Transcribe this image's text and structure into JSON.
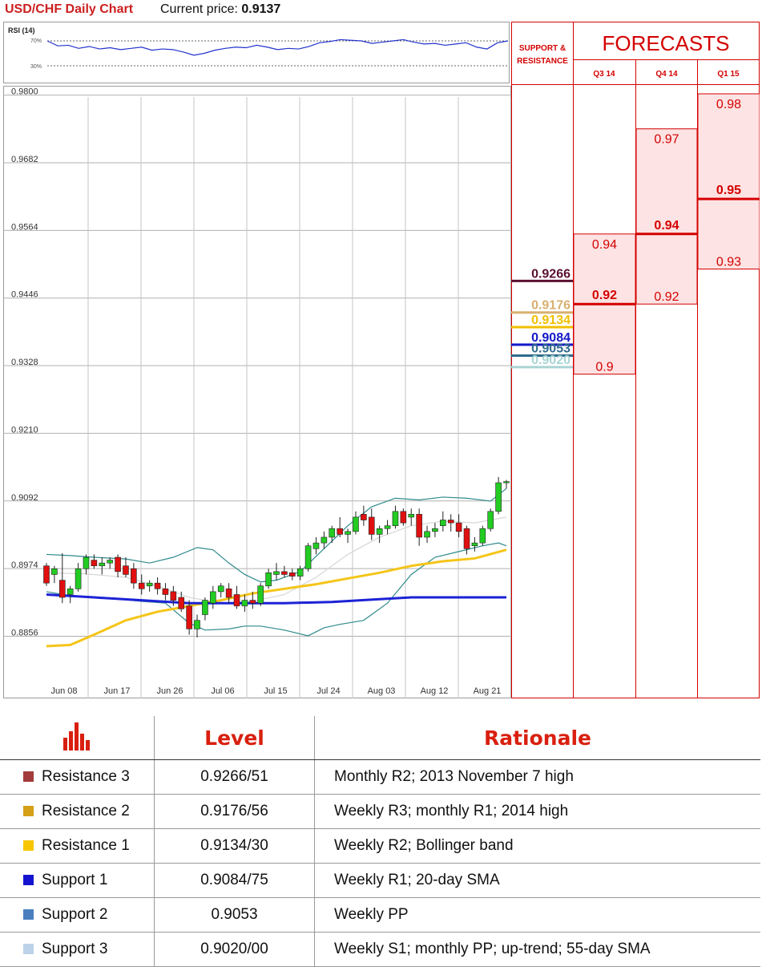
{
  "header": {
    "title": "USD/CHF Daily Chart",
    "price_label": "Current price: ",
    "price_value": "0.9137"
  },
  "rsi": {
    "label": "RSI (14)",
    "levels": [
      "70%",
      "30%"
    ],
    "values": [
      70,
      62,
      63,
      58,
      61,
      57,
      59,
      56,
      58,
      60,
      55,
      57,
      56,
      52,
      47,
      50,
      55,
      58,
      60,
      59,
      63,
      60,
      56,
      58,
      57,
      61,
      67,
      69,
      72,
      71,
      70,
      66,
      68,
      70,
      72,
      68,
      65,
      66,
      63,
      65,
      67,
      60,
      57,
      67,
      70
    ]
  },
  "chart_data": {
    "type": "candlestick",
    "title": "USD/CHF Daily Chart",
    "ylim": [
      0.8812,
      0.9812
    ],
    "yticks": [
      "0.9800",
      "0.9682",
      "0.9564",
      "0.9446",
      "0.9328",
      "0.9210",
      "0.9092",
      "0.8974",
      "0.8856"
    ],
    "xticks": [
      "Jun 08",
      "Jun 17",
      "Jun 26",
      "Jul 06",
      "Jul 15",
      "Jul 24",
      "Aug 03",
      "Aug 12",
      "Aug 21"
    ],
    "grid": true,
    "candles": [
      [
        0.899,
        0.8995,
        0.8955,
        0.896
      ],
      [
        0.8975,
        0.899,
        0.896,
        0.8985
      ],
      [
        0.8965,
        0.9012,
        0.8925,
        0.8935
      ],
      [
        0.894,
        0.8955,
        0.8925,
        0.895
      ],
      [
        0.895,
        0.8995,
        0.8945,
        0.8985
      ],
      [
        0.8985,
        0.901,
        0.8975,
        0.9005
      ],
      [
        0.9,
        0.901,
        0.8985,
        0.899
      ],
      [
        0.899,
        0.9005,
        0.8975,
        0.8995
      ],
      [
        0.8995,
        0.9005,
        0.8985,
        0.9
      ],
      [
        0.9005,
        0.901,
        0.897,
        0.898
      ],
      [
        0.899,
        0.9005,
        0.897,
        0.8975
      ],
      [
        0.8985,
        0.8995,
        0.895,
        0.896
      ],
      [
        0.896,
        0.8975,
        0.894,
        0.895
      ],
      [
        0.8955,
        0.8965,
        0.8945,
        0.896
      ],
      [
        0.896,
        0.897,
        0.894,
        0.895
      ],
      [
        0.895,
        0.896,
        0.893,
        0.894
      ],
      [
        0.8945,
        0.8955,
        0.892,
        0.893
      ],
      [
        0.8935,
        0.8945,
        0.891,
        0.8915
      ],
      [
        0.892,
        0.893,
        0.887,
        0.888
      ],
      [
        0.888,
        0.8905,
        0.8865,
        0.8895
      ],
      [
        0.8905,
        0.8935,
        0.8895,
        0.893
      ],
      [
        0.8925,
        0.8955,
        0.8915,
        0.8945
      ],
      [
        0.8945,
        0.896,
        0.8935,
        0.8955
      ],
      [
        0.895,
        0.896,
        0.8925,
        0.8935
      ],
      [
        0.894,
        0.8955,
        0.8915,
        0.892
      ],
      [
        0.892,
        0.894,
        0.891,
        0.893
      ],
      [
        0.893,
        0.8945,
        0.8915,
        0.8925
      ],
      [
        0.8925,
        0.896,
        0.892,
        0.8955
      ],
      [
        0.8955,
        0.8985,
        0.895,
        0.8978
      ],
      [
        0.8975,
        0.8995,
        0.8965,
        0.898
      ],
      [
        0.898,
        0.899,
        0.897,
        0.8975
      ],
      [
        0.8978,
        0.8985,
        0.8965,
        0.8972
      ],
      [
        0.8972,
        0.899,
        0.8965,
        0.8985
      ],
      [
        0.8985,
        0.903,
        0.898,
        0.9025
      ],
      [
        0.902,
        0.904,
        0.901,
        0.903
      ],
      [
        0.903,
        0.905,
        0.902,
        0.904
      ],
      [
        0.904,
        0.906,
        0.903,
        0.9055
      ],
      [
        0.9055,
        0.9075,
        0.904,
        0.9045
      ],
      [
        0.9045,
        0.9055,
        0.903,
        0.905
      ],
      [
        0.905,
        0.9085,
        0.9045,
        0.9075
      ],
      [
        0.908,
        0.9095,
        0.906,
        0.907
      ],
      [
        0.9075,
        0.909,
        0.9035,
        0.9045
      ],
      [
        0.9045,
        0.906,
        0.903,
        0.9055
      ],
      [
        0.9055,
        0.907,
        0.9045,
        0.906
      ],
      [
        0.906,
        0.9095,
        0.9055,
        0.9085
      ],
      [
        0.9085,
        0.909,
        0.906,
        0.9065
      ],
      [
        0.9075,
        0.909,
        0.906,
        0.908
      ],
      [
        0.908,
        0.909,
        0.9025,
        0.904
      ],
      [
        0.904,
        0.906,
        0.903,
        0.905
      ],
      [
        0.905,
        0.9065,
        0.904,
        0.9055
      ],
      [
        0.906,
        0.9085,
        0.905,
        0.907
      ],
      [
        0.907,
        0.908,
        0.905,
        0.9065
      ],
      [
        0.9065,
        0.908,
        0.904,
        0.905
      ],
      [
        0.9055,
        0.906,
        0.901,
        0.902
      ],
      [
        0.9025,
        0.904,
        0.9015,
        0.903
      ],
      [
        0.903,
        0.906,
        0.9025,
        0.9055
      ],
      [
        0.9055,
        0.909,
        0.905,
        0.9085
      ],
      [
        0.9085,
        0.9145,
        0.908,
        0.9135
      ],
      [
        0.9135,
        0.914,
        0.9125,
        0.9137
      ]
    ],
    "series": [
      {
        "role": "bb_upper",
        "color": "#2f8a8c",
        "points": [
          [
            0,
            0.901
          ],
          [
            3,
            0.9008
          ],
          [
            6,
            0.9005
          ],
          [
            10,
            0.9002
          ],
          [
            13,
            0.8995
          ],
          [
            16,
            0.9005
          ],
          [
            19,
            0.9022
          ],
          [
            21,
            0.9018
          ],
          [
            23,
            0.8995
          ],
          [
            25,
            0.8975
          ],
          [
            27,
            0.8962
          ],
          [
            29,
            0.8965
          ],
          [
            32,
            0.898
          ],
          [
            35,
            0.902
          ],
          [
            38,
            0.906
          ],
          [
            41,
            0.9093
          ],
          [
            44,
            0.9108
          ],
          [
            47,
            0.9105
          ],
          [
            50,
            0.911
          ],
          [
            53,
            0.9108
          ],
          [
            56,
            0.9103
          ],
          [
            58,
            0.9125
          ]
        ]
      },
      {
        "role": "bb_lower",
        "color": "#2f8a8c",
        "points": [
          [
            0,
            0.8945
          ],
          [
            3,
            0.8938
          ],
          [
            6,
            0.8935
          ],
          [
            9,
            0.8932
          ],
          [
            12,
            0.8928
          ],
          [
            15,
            0.8925
          ],
          [
            18,
            0.889
          ],
          [
            20,
            0.8878
          ],
          [
            23,
            0.888
          ],
          [
            25,
            0.8885
          ],
          [
            27,
            0.8885
          ],
          [
            30,
            0.8878
          ],
          [
            33,
            0.8868
          ],
          [
            35,
            0.8882
          ],
          [
            37,
            0.8888
          ],
          [
            40,
            0.8895
          ],
          [
            43,
            0.8925
          ],
          [
            46,
            0.8975
          ],
          [
            49,
            0.9005
          ],
          [
            52,
            0.9015
          ],
          [
            55,
            0.9025
          ],
          [
            57,
            0.903
          ],
          [
            58,
            0.9025
          ]
        ]
      },
      {
        "role": "bb_mid",
        "color": "#d6d6d6",
        "points": [
          [
            0,
            0.8978
          ],
          [
            5,
            0.8976
          ],
          [
            10,
            0.897
          ],
          [
            14,
            0.8955
          ],
          [
            18,
            0.8935
          ],
          [
            22,
            0.8925
          ],
          [
            26,
            0.8928
          ],
          [
            30,
            0.894
          ],
          [
            34,
            0.897
          ],
          [
            38,
            0.901
          ],
          [
            42,
            0.904
          ],
          [
            46,
            0.906
          ],
          [
            50,
            0.9068
          ],
          [
            54,
            0.9065
          ],
          [
            58,
            0.9075
          ]
        ]
      },
      {
        "role": "sma_55",
        "color": "#f5c518",
        "points": [
          [
            0,
            0.885
          ],
          [
            3,
            0.8852
          ],
          [
            6,
            0.887
          ],
          [
            10,
            0.8895
          ],
          [
            14,
            0.891
          ],
          [
            18,
            0.892
          ],
          [
            22,
            0.893
          ],
          [
            26,
            0.8942
          ],
          [
            30,
            0.895
          ],
          [
            34,
            0.8958
          ],
          [
            38,
            0.8968
          ],
          [
            42,
            0.8978
          ],
          [
            46,
            0.899
          ],
          [
            50,
            0.8998
          ],
          [
            54,
            0.9003
          ],
          [
            58,
            0.9018
          ]
        ]
      },
      {
        "role": "sma_200",
        "color": "#1c22d6",
        "points": [
          [
            0,
            0.894
          ],
          [
            6,
            0.8935
          ],
          [
            12,
            0.893
          ],
          [
            18,
            0.8925
          ],
          [
            24,
            0.8925
          ],
          [
            30,
            0.8925
          ],
          [
            36,
            0.8927
          ],
          [
            42,
            0.8932
          ],
          [
            46,
            0.8935
          ],
          [
            52,
            0.8935
          ],
          [
            58,
            0.8935
          ]
        ]
      }
    ]
  },
  "forecast": {
    "heading_left": [
      "SUPPORT &",
      "RESISTANCE"
    ],
    "title": "FORECASTS",
    "columns": [
      "Q3 14",
      "Q4 14",
      "Q1 15"
    ],
    "levels": [
      {
        "label": "0.9266",
        "value": 0.9266,
        "color": "#5a1030"
      },
      {
        "label": "0.9176",
        "value": 0.9176,
        "color": "#d8b070"
      },
      {
        "label": "0.9134",
        "value": 0.9134,
        "color": "#f0c000"
      },
      {
        "label": "0.9084",
        "value": 0.9084,
        "color": "#1418c8"
      },
      {
        "label": "0.9053",
        "value": 0.9053,
        "color": "#2e6c8c"
      },
      {
        "label": "0.9020",
        "value": 0.902,
        "color": "#a9d4d4"
      }
    ],
    "bands": [
      {
        "high": 0.94,
        "mid": 0.92,
        "low": 0.9,
        "labels": [
          "0.94",
          "0.92",
          "0.9"
        ]
      },
      {
        "high": 0.97,
        "mid": 0.94,
        "low": 0.92,
        "labels": [
          "0.97",
          "0.94",
          "0.92"
        ]
      },
      {
        "high": 0.98,
        "mid": 0.95,
        "low": 0.93,
        "labels": [
          "0.98",
          "0.95",
          "0.93"
        ]
      }
    ],
    "colors": {
      "band_fill": "#fde3e3",
      "line": "#d40000"
    }
  },
  "table": {
    "headers": [
      "Level",
      "Rationale"
    ],
    "rows": [
      {
        "name": "Resistance 3",
        "level": "0.9266/51",
        "rationale": "Monthly R2; 2013 November 7 high",
        "color": "#a23b3b"
      },
      {
        "name": "Resistance 2",
        "level": "0.9176/56",
        "rationale": "Weekly R3; monthly R1; 2014 high",
        "color": "#d4a017"
      },
      {
        "name": "Resistance 1",
        "level": "0.9134/30",
        "rationale": "Weekly R2; Bollinger band",
        "color": "#f7c600"
      },
      {
        "name": "Support 1",
        "level": "0.9084/75",
        "rationale": "Weekly R1; 20-day SMA",
        "color": "#1414d0"
      },
      {
        "name": "Support 2",
        "level": "0.9053",
        "rationale": "Weekly PP",
        "color": "#4a7fbf"
      },
      {
        "name": "Support 3",
        "level": "0.9020/00",
        "rationale": "Weekly S1; monthly PP; up-trend; 55-day SMA",
        "color": "#bcd2e8"
      }
    ]
  }
}
